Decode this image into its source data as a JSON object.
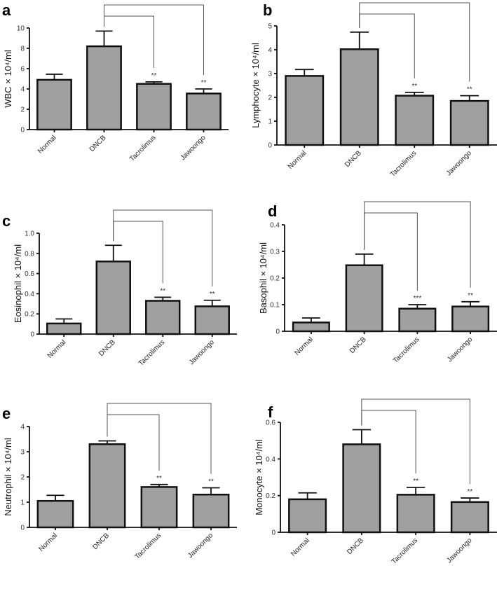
{
  "chart_data": [
    {
      "panel": "a",
      "type": "bar",
      "ylabel": "WBC × 10⁴/ml",
      "categories": [
        "Normal",
        "DNCB",
        "Tacrolimus",
        "Jawoongo"
      ],
      "values": [
        4.9,
        8.2,
        4.5,
        3.55
      ],
      "errors": [
        0.55,
        1.5,
        0.2,
        0.45
      ],
      "ylim": [
        0,
        10
      ],
      "yticks": [
        "0",
        "2",
        "4",
        "6",
        "8",
        "10"
      ],
      "significance": [
        "",
        "",
        "**",
        "**"
      ]
    },
    {
      "panel": "b",
      "type": "bar",
      "ylabel": "Lymphocyte × 10⁴/ml",
      "categories": [
        "Normal",
        "DNCB",
        "Tacrolimus",
        "Jawoongo"
      ],
      "values": [
        2.9,
        4.02,
        2.07,
        1.85
      ],
      "errors": [
        0.27,
        0.72,
        0.14,
        0.22
      ],
      "ylim": [
        0,
        5
      ],
      "yticks": [
        "0",
        "1",
        "2",
        "3",
        "4",
        "5"
      ],
      "significance": [
        "",
        "",
        "**",
        "**"
      ]
    },
    {
      "panel": "c",
      "type": "bar",
      "ylabel": "Eosinophil × 10⁴/ml",
      "categories": [
        "Normal",
        "DNCB",
        "Tacrolimus",
        "Jawoongo"
      ],
      "values": [
        0.105,
        0.72,
        0.33,
        0.275
      ],
      "errors": [
        0.045,
        0.16,
        0.035,
        0.06
      ],
      "ylim": [
        0,
        1.0
      ],
      "yticks": [
        "0",
        "0.2",
        "0.4",
        "0.6",
        "0.8",
        "1.0"
      ],
      "significance": [
        "",
        "",
        "**",
        "**"
      ]
    },
    {
      "panel": "d",
      "type": "bar",
      "ylabel": "Basophil × 10⁴/ml",
      "categories": [
        "Normal",
        "DNCB",
        "Tacrolimus",
        "Jawoongo"
      ],
      "values": [
        0.033,
        0.248,
        0.085,
        0.093
      ],
      "errors": [
        0.017,
        0.042,
        0.015,
        0.018
      ],
      "ylim": [
        0,
        0.4
      ],
      "yticks": [
        "0",
        "0.1",
        "0.2",
        "0.3",
        "0.4"
      ],
      "significance": [
        "",
        "",
        "***",
        "**"
      ]
    },
    {
      "panel": "e",
      "type": "bar",
      "ylabel": "Neutrophil × 10⁴/ml",
      "categories": [
        "Normal",
        "DNCB",
        "Tacrolimus",
        "Jawoongo"
      ],
      "values": [
        1.05,
        3.3,
        1.6,
        1.3
      ],
      "errors": [
        0.22,
        0.13,
        0.1,
        0.27
      ],
      "ylim": [
        0,
        4
      ],
      "yticks": [
        "0",
        "1",
        "2",
        "3",
        "4"
      ],
      "significance": [
        "",
        "",
        "**",
        "**"
      ]
    },
    {
      "panel": "f",
      "type": "bar",
      "ylabel": "Monocyte × 10⁴/ml",
      "categories": [
        "Normal",
        "DNCB",
        "Tacrolimus",
        "Jawoongo"
      ],
      "values": [
        0.18,
        0.48,
        0.205,
        0.165
      ],
      "errors": [
        0.035,
        0.08,
        0.04,
        0.022
      ],
      "ylim": [
        0,
        0.6
      ],
      "yticks": [
        "0",
        "0.2",
        "0.4",
        "0.6"
      ],
      "significance": [
        "",
        "",
        "**",
        "**"
      ]
    }
  ]
}
